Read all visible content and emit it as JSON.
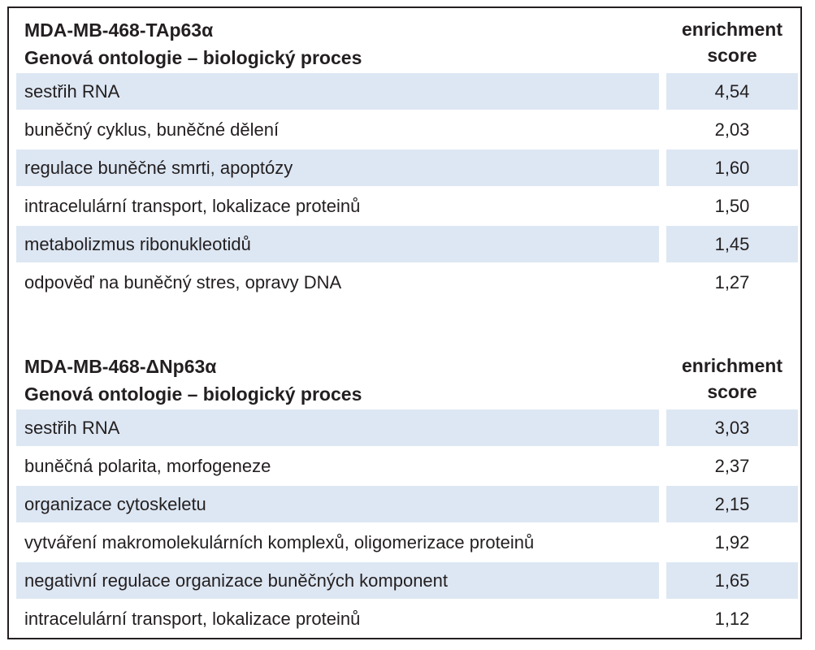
{
  "tables": [
    {
      "cell_line": "MDA-MB-468-TAp63α",
      "ontology_header": "Genová ontologie – biologický proces",
      "score_header_line1": "enrichment",
      "score_header_line2": "score",
      "rows": [
        {
          "process": "sestřih RNA",
          "score": "4,54"
        },
        {
          "process": "buněčný cyklus, buněčné dělení",
          "score": "2,03"
        },
        {
          "process": "regulace buněčné smrti, apoptózy",
          "score": "1,60"
        },
        {
          "process": "intracelulární transport, lokalizace proteinů",
          "score": "1,50"
        },
        {
          "process": "metabolizmus ribonukleotidů",
          "score": "1,45"
        },
        {
          "process": "odpověď na buněčný stres, opravy DNA",
          "score": "1,27"
        }
      ]
    },
    {
      "cell_line": "MDA-MB-468-ΔNp63α",
      "ontology_header": "Genová ontologie – biologický proces",
      "score_header_line1": "enrichment",
      "score_header_line2": "score",
      "rows": [
        {
          "process": "sestřih RNA",
          "score": "3,03"
        },
        {
          "process": "buněčná polarita, morfogeneze",
          "score": "2,37"
        },
        {
          "process": "organizace cytoskeletu",
          "score": "2,15"
        },
        {
          "process": "vytváření makromolekulárních komplexů, oligomerizace proteinů",
          "score": "1,92"
        },
        {
          "process": "negativní regulace organizace buněčných komponent",
          "score": "1,65"
        },
        {
          "process": "intracelulární transport, lokalizace proteinů",
          "score": "1,12"
        }
      ]
    }
  ],
  "colors": {
    "row_shading": "#dde7f3",
    "text": "#231f20",
    "border": "#231f20"
  }
}
